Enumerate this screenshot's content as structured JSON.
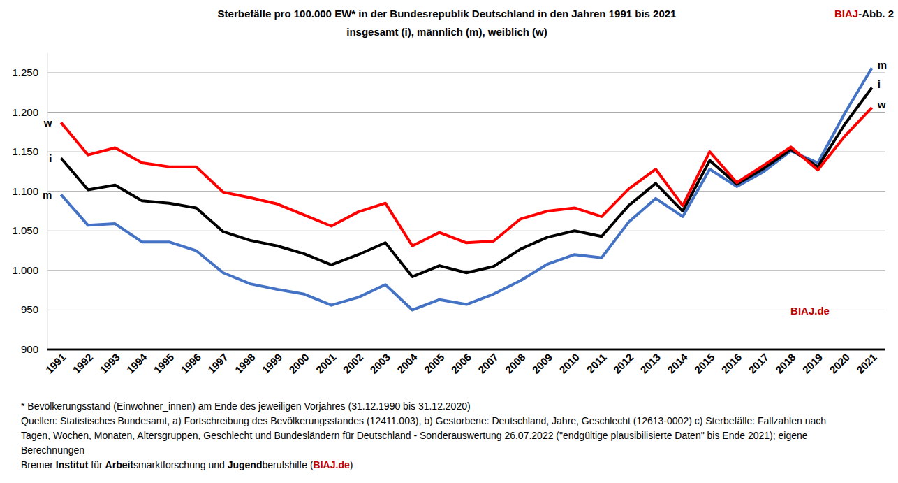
{
  "chart_data": {
    "type": "line",
    "title": "Sterbefälle pro 100.000 EW* in der Bundesrepublik Deutschland in den Jahren 1991 bis 2021",
    "subtitle": "insgesamt (i), männlich (m), weiblich (w)",
    "figure_label": [
      "BIAJ",
      "-Abb. 2"
    ],
    "watermark": "BIAJ.de",
    "notes": [
      "* Bevölkerungsstand (Einwohner_innen) am Ende des jeweiligen Vorjahres (31.12.1990 bis 31.12.2020)",
      "Quellen: Statistisches Bundesamt, a) Fortschreibung des Bevölkerungsstandes (12411.003), b) Gestorbene: Deutschland, Jahre, Geschlecht (12613-0002) c) Sterbefälle: Fallzahlen nach",
      "Tagen, Wochen, Monaten, Altersgruppen, Geschlecht und Bundesländern für Deutschland - Sonderauswertung 26.07.2022 (\"endgültige plausibilisierte Daten\" bis Ende 2021); eigene",
      "Berechnungen"
    ],
    "source": [
      "Bremer ",
      "Institut",
      " für ",
      "Arbeit",
      "smarktforschung und ",
      "Jugend",
      "berufshilfe (",
      "BIAJ.de",
      ")"
    ],
    "categories": [
      "1991",
      "1992",
      "1993",
      "1994",
      "1995",
      "1996",
      "1997",
      "1998",
      "1999",
      "2000",
      "2001",
      "2002",
      "2003",
      "2004",
      "2005",
      "2006",
      "2007",
      "2008",
      "2009",
      "2010",
      "2011",
      "2012",
      "2013",
      "2014",
      "2015",
      "2016",
      "2017",
      "2018",
      "2019",
      "2020",
      "2021"
    ],
    "series": [
      {
        "name": "m",
        "color": "#4472c4",
        "values": [
          1096,
          1057,
          1059,
          1036,
          1036,
          1025,
          997,
          983,
          976,
          970,
          956,
          966,
          982,
          950,
          963,
          957,
          970,
          987,
          1008,
          1020,
          1016,
          1061,
          1091,
          1068,
          1128,
          1106,
          1125,
          1151,
          1136,
          1199,
          1256
        ]
      },
      {
        "name": "i",
        "color": "#000000",
        "values": [
          1142,
          1102,
          1108,
          1088,
          1085,
          1079,
          1049,
          1038,
          1031,
          1021,
          1007,
          1020,
          1035,
          992,
          1006,
          997,
          1005,
          1027,
          1042,
          1050,
          1043,
          1082,
          1110,
          1075,
          1139,
          1109,
          1129,
          1153,
          1131,
          1185,
          1231
        ]
      },
      {
        "name": "w",
        "color": "#ff0000",
        "values": [
          1187,
          1146,
          1155,
          1136,
          1131,
          1131,
          1099,
          1092,
          1084,
          1070,
          1056,
          1074,
          1085,
          1031,
          1048,
          1035,
          1037,
          1065,
          1075,
          1079,
          1068,
          1103,
          1128,
          1082,
          1150,
          1111,
          1133,
          1156,
          1127,
          1170,
          1206
        ]
      }
    ],
    "ylim": [
      900,
      1275
    ],
    "yticks": [
      900,
      950,
      {
        "value": 1000,
        "label": "1.000"
      },
      {
        "value": 1050,
        "label": "1.050"
      },
      {
        "value": 1100,
        "label": "1.100"
      },
      {
        "value": 1150,
        "label": "1.150"
      },
      {
        "value": 1200,
        "label": "1.200"
      },
      {
        "value": 1250,
        "label": "1.250"
      }
    ],
    "grid": true
  }
}
